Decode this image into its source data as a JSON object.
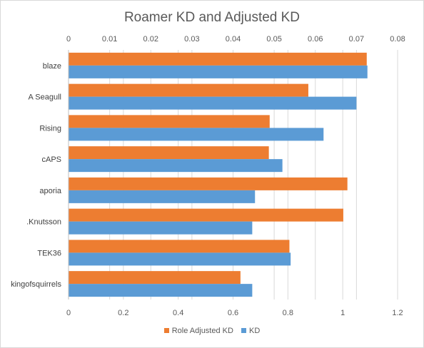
{
  "chart_data": {
    "type": "bar",
    "orientation": "horizontal",
    "title": "Roamer KD and Adjusted KD",
    "categories": [
      "blaze",
      "A Seagull",
      "Rising",
      "cAPS",
      "aporia",
      ".Knutsson",
      "TEK36",
      "kingofsquirrels"
    ],
    "series": [
      {
        "name": "Role Adjusted KD",
        "axis": "top",
        "color": "#ed7d31",
        "values": [
          0.0725,
          0.0583,
          0.0489,
          0.0487,
          0.0678,
          0.0668,
          0.0537,
          0.0418
        ]
      },
      {
        "name": "KD",
        "axis": "bottom",
        "color": "#5b9bd5",
        "values": [
          1.09,
          1.05,
          0.93,
          0.78,
          0.68,
          0.67,
          0.81,
          0.67
        ]
      }
    ],
    "top_axis": {
      "range": [
        0,
        0.08
      ],
      "ticks": [
        "0",
        "0.01",
        "0.02",
        "0.03",
        "0.04",
        "0.05",
        "0.06",
        "0.07",
        "0.08"
      ]
    },
    "bottom_axis": {
      "range": [
        0,
        1.2
      ],
      "ticks": [
        "0",
        "0.2",
        "0.4",
        "0.6",
        "0.8",
        "1",
        "1.2"
      ]
    },
    "grid": true,
    "legend_position": "bottom"
  }
}
